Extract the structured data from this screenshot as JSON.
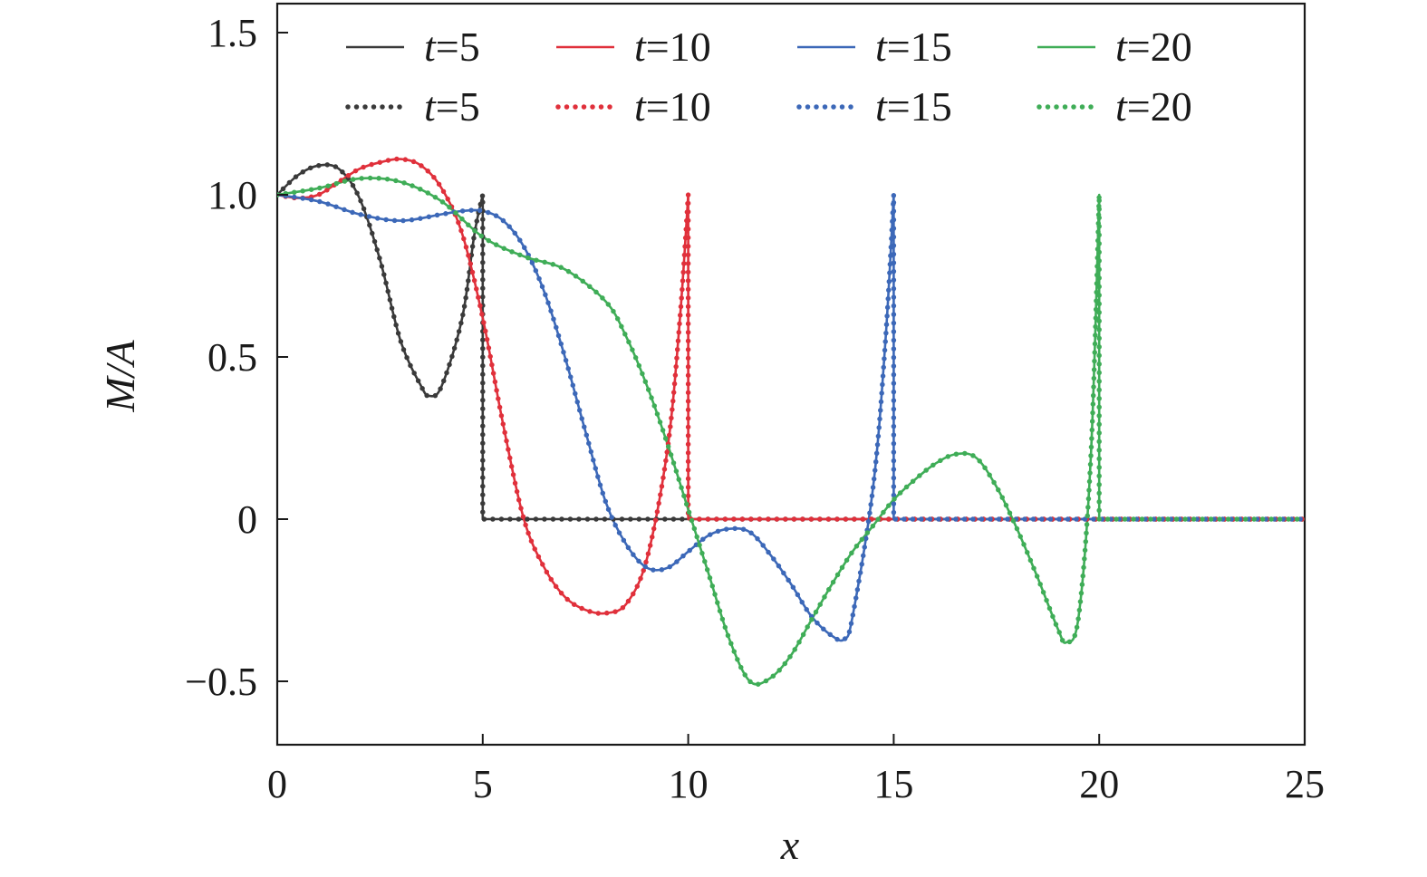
{
  "chart_data": {
    "type": "line",
    "title": "",
    "xlabel": "x",
    "ylabel": "M/A",
    "xlim": [
      0,
      25
    ],
    "ylim": [
      -0.7,
      1.6
    ],
    "xticks": [
      0,
      5,
      10,
      15,
      20,
      25
    ],
    "xtick_labels": [
      "0",
      "5",
      "10",
      "15",
      "20",
      "25"
    ],
    "yticks": [
      -0.5,
      0,
      0.5,
      1.0,
      1.5
    ],
    "ytick_labels": [
      "−0.5",
      "0",
      "0.5",
      "1.0",
      "1.5"
    ],
    "grid": false,
    "legend_position": "top, 4 columns, 2 rows",
    "series": [
      {
        "name": "t=5",
        "legend_var": "t",
        "legend_val": "=5",
        "style": "solid",
        "color": "#3a3a3a",
        "x": [
          0,
          0.5,
          1,
          1.5,
          2,
          2.5,
          3,
          3.5,
          3.7,
          4,
          4.5,
          4.8,
          5,
          5,
          25
        ],
        "y": [
          1.0,
          1.06,
          1.09,
          1.08,
          0.99,
          0.8,
          0.55,
          0.41,
          0.38,
          0.41,
          0.62,
          0.88,
          1.0,
          0.0,
          0.0
        ]
      },
      {
        "name": "t=10",
        "legend_var": "t",
        "legend_val": "=10",
        "style": "solid",
        "color": "#e0303b",
        "x": [
          0,
          0.5,
          1,
          1.5,
          2,
          2.5,
          3,
          3.5,
          4,
          4.5,
          5,
          5.5,
          6,
          6.5,
          7,
          7.5,
          8,
          8.5,
          9,
          9.5,
          9.8,
          10,
          10,
          25
        ],
        "y": [
          1.0,
          0.99,
          1.0,
          1.04,
          1.08,
          1.1,
          1.11,
          1.09,
          1.02,
          0.88,
          0.62,
          0.29,
          0.0,
          -0.15,
          -0.24,
          -0.28,
          -0.29,
          -0.26,
          -0.12,
          0.22,
          0.62,
          1.0,
          0.0,
          0.0
        ]
      },
      {
        "name": "t=15",
        "legend_var": "t",
        "legend_val": "=15",
        "style": "solid",
        "color": "#3c68b8",
        "x": [
          0,
          1,
          2,
          3,
          4,
          4.5,
          5,
          5.5,
          6,
          6.5,
          7,
          7.5,
          8,
          8.5,
          9,
          9.5,
          10,
          10.5,
          11,
          11.5,
          12,
          12.5,
          13,
          13.5,
          13.8,
          14,
          14.5,
          14.8,
          15,
          15,
          25
        ],
        "y": [
          1.0,
          0.98,
          0.94,
          0.92,
          0.94,
          0.95,
          0.95,
          0.92,
          0.84,
          0.7,
          0.5,
          0.27,
          0.05,
          -0.08,
          -0.15,
          -0.15,
          -0.1,
          -0.05,
          -0.03,
          -0.04,
          -0.11,
          -0.2,
          -0.3,
          -0.36,
          -0.37,
          -0.3,
          0.1,
          0.55,
          1.0,
          0.0,
          0.0
        ]
      },
      {
        "name": "t=20",
        "legend_var": "t",
        "legend_val": "=20",
        "style": "solid",
        "color": "#3fad57",
        "x": [
          0,
          1,
          2,
          3,
          4,
          5,
          6,
          7,
          8,
          8.5,
          9,
          9.5,
          10,
          10.5,
          11,
          11.5,
          12,
          12.5,
          13,
          13.5,
          14,
          14.5,
          15,
          15.5,
          16,
          16.5,
          17,
          17.5,
          18,
          18.5,
          19,
          19.2,
          19.5,
          19.8,
          20,
          20,
          25
        ],
        "y": [
          1.0,
          1.02,
          1.05,
          1.04,
          0.98,
          0.87,
          0.81,
          0.77,
          0.67,
          0.56,
          0.41,
          0.23,
          0.03,
          -0.17,
          -0.37,
          -0.5,
          -0.49,
          -0.42,
          -0.31,
          -0.2,
          -0.1,
          -0.02,
          0.06,
          0.12,
          0.17,
          0.2,
          0.19,
          0.1,
          -0.03,
          -0.18,
          -0.34,
          -0.38,
          -0.3,
          0.2,
          1.0,
          0.0,
          0.0
        ]
      },
      {
        "name": "t=5",
        "legend_var": "t",
        "legend_val": "=5",
        "style": "dotted",
        "color": "#3a3a3a",
        "same_values_as": "t=5"
      },
      {
        "name": "t=10",
        "legend_var": "t",
        "legend_val": "=10",
        "style": "dotted",
        "color": "#e0303b",
        "same_values_as": "t=10"
      },
      {
        "name": "t=15",
        "legend_var": "t",
        "legend_val": "=15",
        "style": "dotted",
        "color": "#3c68b8",
        "same_values_as": "t=15"
      },
      {
        "name": "t=20",
        "legend_var": "t",
        "legend_val": "=20",
        "style": "dotted",
        "color": "#3fad57",
        "same_values_as": "t=20"
      }
    ]
  }
}
